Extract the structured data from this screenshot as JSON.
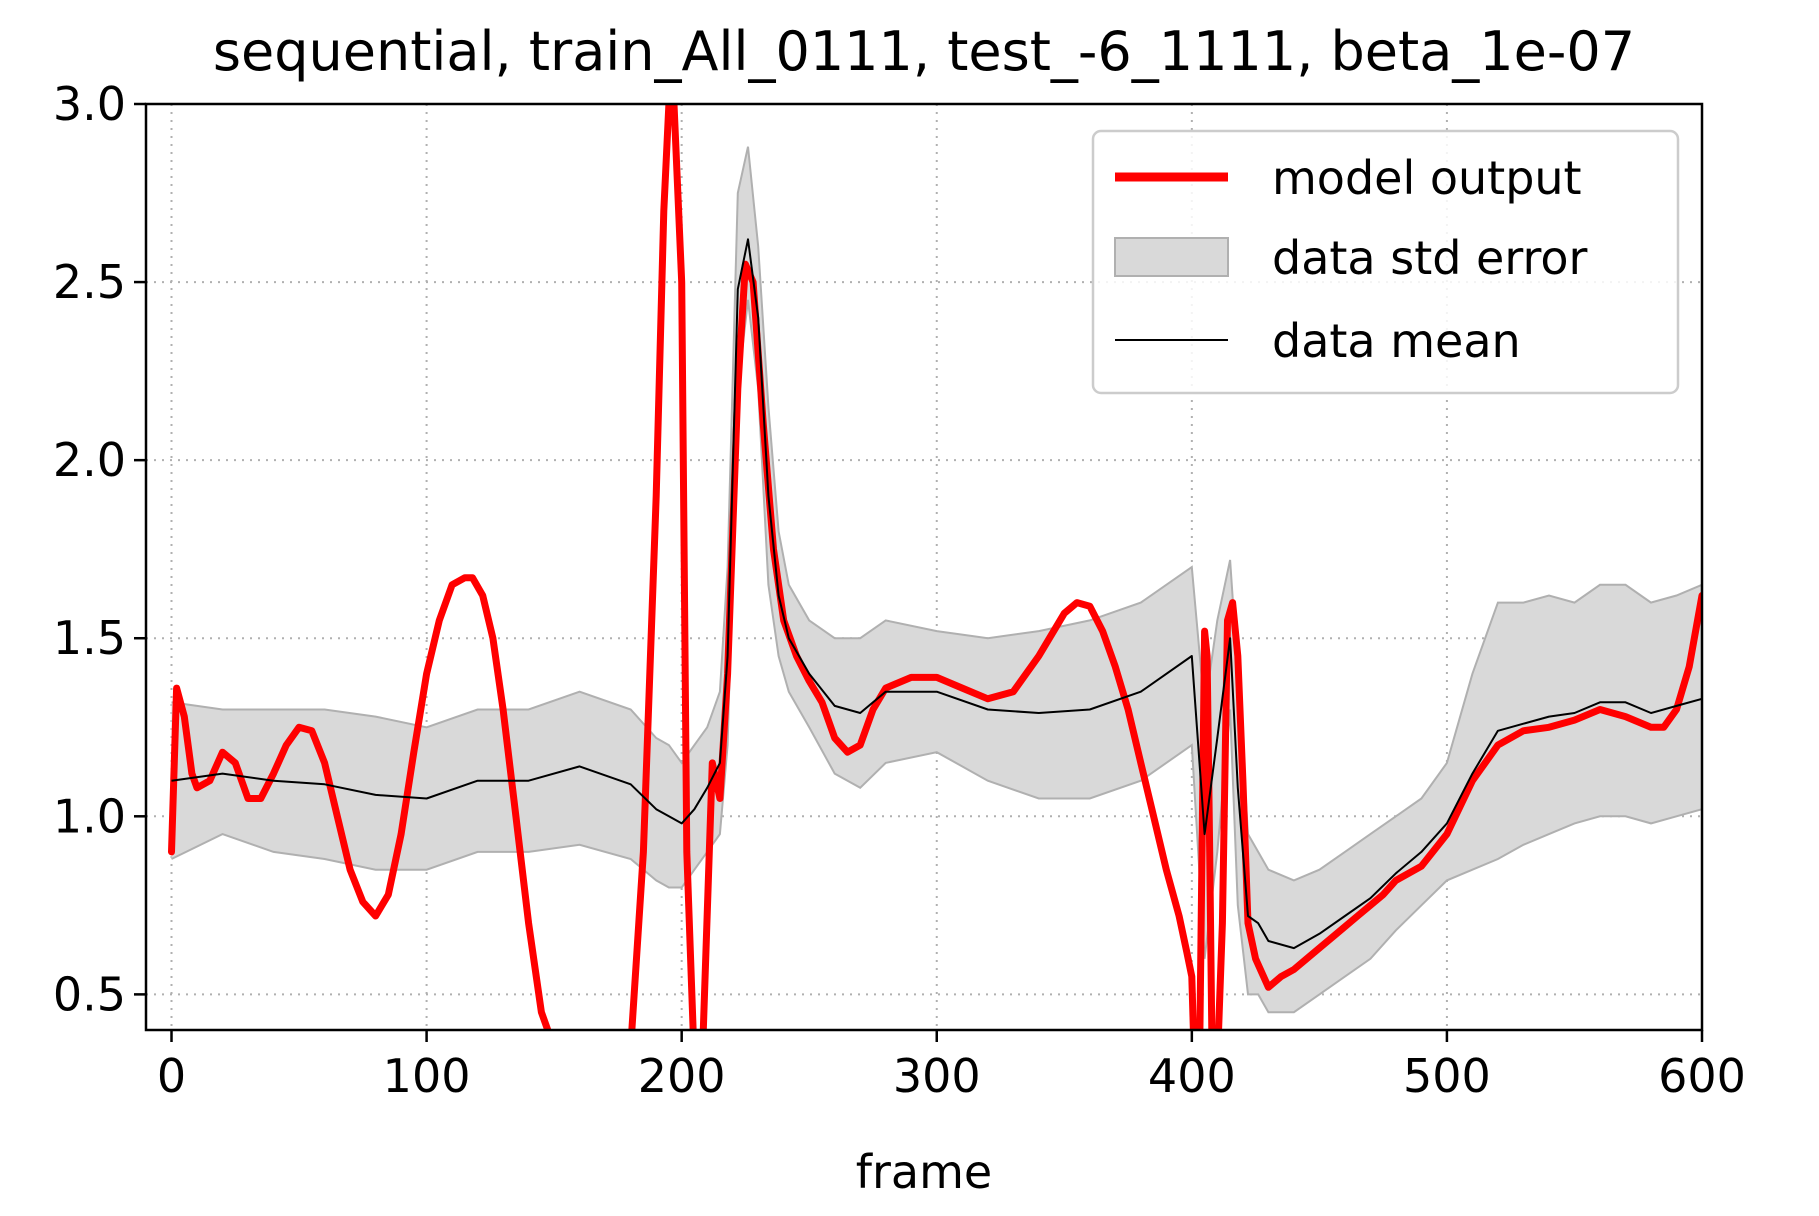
{
  "chart_data": {
    "type": "line",
    "title": "sequential, train_All_0111, test_-6_1111, beta_1e-07",
    "xlabel": "frame",
    "ylabel": "",
    "xlim": [
      -10,
      600
    ],
    "ylim": [
      0.4,
      3.0
    ],
    "grid": true,
    "legend_position": "top-right",
    "x_ticks": [
      0,
      100,
      200,
      300,
      400,
      500,
      600
    ],
    "x_tick_labels": [
      "0",
      "100",
      "200",
      "300",
      "400",
      "500",
      "600"
    ],
    "y_ticks": [
      0.5,
      1.0,
      1.5,
      2.0,
      2.5,
      3.0
    ],
    "y_tick_labels": [
      "0.5",
      "1.0",
      "1.5",
      "2.0",
      "2.5",
      "3.0"
    ],
    "colors": {
      "model_output": "#ff0000",
      "data_mean": "#000000",
      "std_fill": "#d9d9d9",
      "std_edge": "#b0b0b0",
      "grid": "#b0b0b0"
    },
    "series": [
      {
        "name": "model output",
        "style": "thick-red-line",
        "x": [
          0,
          2,
          5,
          8,
          10,
          15,
          20,
          25,
          30,
          35,
          40,
          45,
          50,
          55,
          60,
          65,
          70,
          75,
          80,
          85,
          90,
          95,
          100,
          105,
          110,
          115,
          118,
          122,
          126,
          130,
          135,
          140,
          145,
          150,
          155,
          160,
          165,
          170,
          175,
          180,
          185,
          190,
          193,
          195,
          197,
          200,
          202,
          205,
          208,
          212,
          215,
          218,
          222,
          225,
          228,
          232,
          236,
          240,
          245,
          250,
          255,
          260,
          265,
          270,
          275,
          280,
          290,
          300,
          310,
          320,
          330,
          340,
          350,
          355,
          360,
          365,
          370,
          375,
          380,
          385,
          390,
          395,
          398,
          400,
          401,
          402,
          403,
          404,
          405,
          406,
          407,
          408,
          410,
          412,
          414,
          416,
          418,
          420,
          422,
          425,
          430,
          435,
          440,
          445,
          450,
          455,
          460,
          465,
          470,
          475,
          480,
          490,
          500,
          510,
          520,
          530,
          540,
          550,
          560,
          570,
          580,
          585,
          590,
          595,
          600
        ],
        "y": [
          0.9,
          1.36,
          1.28,
          1.12,
          1.08,
          1.1,
          1.18,
          1.15,
          1.05,
          1.05,
          1.12,
          1.2,
          1.25,
          1.24,
          1.15,
          1.0,
          0.85,
          0.76,
          0.72,
          0.78,
          0.95,
          1.18,
          1.4,
          1.55,
          1.65,
          1.67,
          1.67,
          1.62,
          1.5,
          1.3,
          1.0,
          0.7,
          0.45,
          0.35,
          0.3,
          0.3,
          0.3,
          0.3,
          0.3,
          0.35,
          0.9,
          1.9,
          2.7,
          3.0,
          3.0,
          2.5,
          0.9,
          0.3,
          0.3,
          1.15,
          1.05,
          1.4,
          2.2,
          2.55,
          2.5,
          2.1,
          1.75,
          1.55,
          1.45,
          1.38,
          1.32,
          1.22,
          1.18,
          1.2,
          1.3,
          1.36,
          1.39,
          1.39,
          1.36,
          1.33,
          1.35,
          1.45,
          1.57,
          1.6,
          1.59,
          1.52,
          1.42,
          1.3,
          1.15,
          1.0,
          0.85,
          0.72,
          0.62,
          0.55,
          0.3,
          0.3,
          0.3,
          0.9,
          1.52,
          1.45,
          0.9,
          0.3,
          0.3,
          0.7,
          1.55,
          1.6,
          1.45,
          1.1,
          0.7,
          0.6,
          0.52,
          0.55,
          0.57,
          0.6,
          0.63,
          0.66,
          0.69,
          0.72,
          0.75,
          0.78,
          0.82,
          0.86,
          0.95,
          1.1,
          1.2,
          1.24,
          1.25,
          1.27,
          1.3,
          1.28,
          1.25,
          1.25,
          1.3,
          1.42,
          1.62
        ]
      },
      {
        "name": "data std error",
        "style": "grey-band",
        "x": [
          0,
          20,
          40,
          60,
          80,
          100,
          120,
          140,
          160,
          180,
          190,
          195,
          200,
          205,
          210,
          215,
          218,
          222,
          226,
          230,
          234,
          238,
          242,
          250,
          260,
          270,
          280,
          300,
          320,
          340,
          360,
          380,
          400,
          405,
          410,
          415,
          418,
          422,
          426,
          430,
          440,
          450,
          460,
          470,
          480,
          490,
          500,
          510,
          520,
          530,
          540,
          550,
          560,
          570,
          580,
          590,
          600
        ],
        "lower": [
          0.88,
          0.95,
          0.9,
          0.88,
          0.85,
          0.85,
          0.9,
          0.9,
          0.92,
          0.88,
          0.82,
          0.8,
          0.8,
          0.85,
          0.9,
          0.95,
          1.2,
          2.2,
          2.45,
          2.2,
          1.65,
          1.45,
          1.35,
          1.25,
          1.12,
          1.08,
          1.15,
          1.18,
          1.1,
          1.05,
          1.05,
          1.1,
          1.2,
          0.6,
          0.9,
          1.3,
          0.75,
          0.5,
          0.5,
          0.45,
          0.45,
          0.5,
          0.55,
          0.6,
          0.68,
          0.75,
          0.82,
          0.85,
          0.88,
          0.92,
          0.95,
          0.98,
          1.0,
          1.0,
          0.98,
          1.0,
          1.02
        ],
        "upper": [
          1.32,
          1.3,
          1.3,
          1.3,
          1.28,
          1.25,
          1.3,
          1.3,
          1.35,
          1.3,
          1.22,
          1.2,
          1.15,
          1.2,
          1.25,
          1.35,
          1.7,
          2.75,
          2.88,
          2.6,
          2.15,
          1.8,
          1.65,
          1.55,
          1.5,
          1.5,
          1.55,
          1.52,
          1.5,
          1.52,
          1.55,
          1.6,
          1.7,
          1.3,
          1.55,
          1.72,
          1.4,
          0.95,
          0.9,
          0.85,
          0.82,
          0.85,
          0.9,
          0.95,
          1.0,
          1.05,
          1.15,
          1.4,
          1.6,
          1.6,
          1.62,
          1.6,
          1.65,
          1.65,
          1.6,
          1.62,
          1.65
        ]
      },
      {
        "name": "data mean",
        "style": "thin-black-line",
        "x": [
          0,
          20,
          40,
          60,
          80,
          100,
          120,
          140,
          160,
          180,
          190,
          195,
          200,
          205,
          210,
          215,
          218,
          222,
          226,
          230,
          234,
          238,
          242,
          250,
          260,
          270,
          280,
          300,
          320,
          340,
          360,
          380,
          400,
          405,
          410,
          415,
          418,
          422,
          426,
          430,
          440,
          450,
          460,
          470,
          480,
          490,
          500,
          510,
          520,
          530,
          540,
          550,
          560,
          570,
          580,
          590,
          600
        ],
        "y": [
          1.1,
          1.12,
          1.1,
          1.09,
          1.06,
          1.05,
          1.1,
          1.1,
          1.14,
          1.09,
          1.02,
          1.0,
          0.98,
          1.02,
          1.08,
          1.15,
          1.45,
          2.48,
          2.62,
          2.4,
          1.9,
          1.62,
          1.5,
          1.4,
          1.31,
          1.29,
          1.35,
          1.35,
          1.3,
          1.29,
          1.3,
          1.35,
          1.45,
          0.95,
          1.22,
          1.5,
          1.08,
          0.72,
          0.7,
          0.65,
          0.63,
          0.67,
          0.72,
          0.77,
          0.84,
          0.9,
          0.98,
          1.12,
          1.24,
          1.26,
          1.28,
          1.29,
          1.32,
          1.32,
          1.29,
          1.31,
          1.33
        ]
      }
    ]
  }
}
